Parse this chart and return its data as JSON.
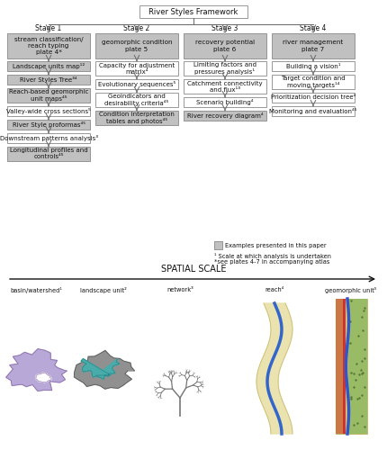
{
  "bg_color": "#ffffff",
  "box_fill_shaded": "#c0c0c0",
  "box_fill_white": "#ffffff",
  "box_edge": "#888888",
  "arrow_color": "#666666",
  "title_box": "River Styles Framework",
  "stages": [
    "Stage 1",
    "Stage 2",
    "Stage 3",
    "Stage 4"
  ],
  "stage_boxes": [
    "stream classification/\nreach typing\nplate 4*",
    "geomorphic condition\nplate 5",
    "recovery potential\nplate 6",
    "river management\nplate 7"
  ],
  "col1_items": [
    {
      "text": "Landscape units map¹²",
      "shaded": true
    },
    {
      "text": "River Styles Tree³⁴",
      "shaded": true
    },
    {
      "text": "Reach-based geomorphic\nunit maps⁴⁵",
      "shaded": true
    },
    {
      "text": "Valley-wide cross sections⁵",
      "shaded": false
    },
    {
      "text": "River Style proformas⁴⁵",
      "shaded": true
    },
    {
      "text": "Downstream patterns analysis³",
      "shaded": false
    },
    {
      "text": "Longitudinal profiles and\ncontrols⁴⁵",
      "shaded": true
    }
  ],
  "col2_items": [
    {
      "text": "Capacity for adjustment\nmatrix⁴",
      "shaded": false
    },
    {
      "text": "Evolutionary sequences⁵",
      "shaded": false
    },
    {
      "text": "Geoindicators and\ndesirability criteria⁴⁵",
      "shaded": false
    },
    {
      "text": "Condition interpretation\ntables and photos⁴⁵",
      "shaded": true
    }
  ],
  "col3_items": [
    {
      "text": "Limiting factors and\npressures analysis¹",
      "shaded": false
    },
    {
      "text": "Catchment connectivity\nand flux¹³",
      "shaded": false
    },
    {
      "text": "Scenario building⁴",
      "shaded": false
    },
    {
      "text": "River recovery diagram⁴",
      "shaded": true
    }
  ],
  "col4_items": [
    {
      "text": "Building a vision¹",
      "shaded": false
    },
    {
      "text": "Target condition and\nmoving targets¹⁴",
      "shaded": false
    },
    {
      "text": "Prioritization decision tree⁴",
      "shaded": false
    },
    {
      "text": "Monitoring and evaluation⁴⁵",
      "shaded": false
    }
  ],
  "legend_text1": "Examples presented in this paper",
  "legend_text2": "¹ Scale at which analysis is undertaken",
  "legend_text3": "*see plates 4-7 in accompanying atlas",
  "spatial_scale_label": "SPATIAL SCALE",
  "spatial_scale_items": [
    "basin/watershed¹",
    "landscape unit²",
    "network³",
    "reach⁴",
    "geomorphic unit⁵"
  ]
}
